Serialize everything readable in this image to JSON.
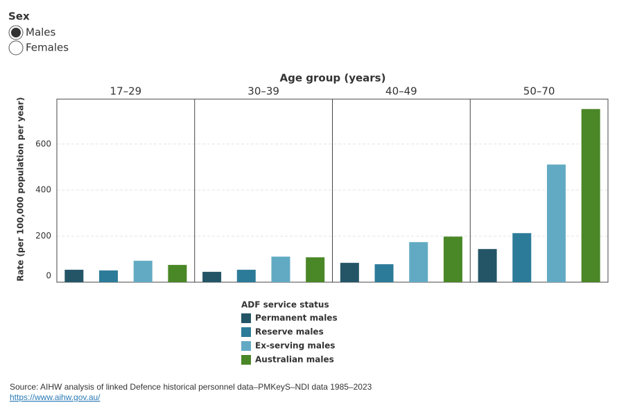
{
  "controls": {
    "sex": {
      "label": "Sex",
      "options": [
        "Males",
        "Females"
      ],
      "selected": 0
    }
  },
  "chart_data": {
    "type": "bar",
    "title": "Age group (years)",
    "y_label": "Rate (per 100,000 population per year)",
    "categories": [
      "17–29",
      "30–39",
      "40–49",
      "50–70"
    ],
    "series": [
      {
        "name": "Permanent males",
        "color": "#245567",
        "values": [
          54,
          45,
          84,
          144
        ]
      },
      {
        "name": "Reserve males",
        "color": "#2c7b98",
        "values": [
          51,
          54,
          78,
          213
        ]
      },
      {
        "name": "Ex-serving males",
        "color": "#62aac4",
        "values": [
          93,
          111,
          174,
          511
        ]
      },
      {
        "name": "Australian males",
        "color": "#4a8727",
        "values": [
          75,
          108,
          198,
          752
        ]
      }
    ],
    "ylim": [
      0,
      795
    ],
    "yticks": [
      0,
      200,
      400,
      600
    ],
    "grid": true,
    "legend_title": "ADF service status"
  },
  "source": {
    "text": "Source: AIHW analysis of linked Defence historical personnel data–PMKeyS–NDI data 1985–2023",
    "link": "https://www.aihw.gov.au/"
  }
}
